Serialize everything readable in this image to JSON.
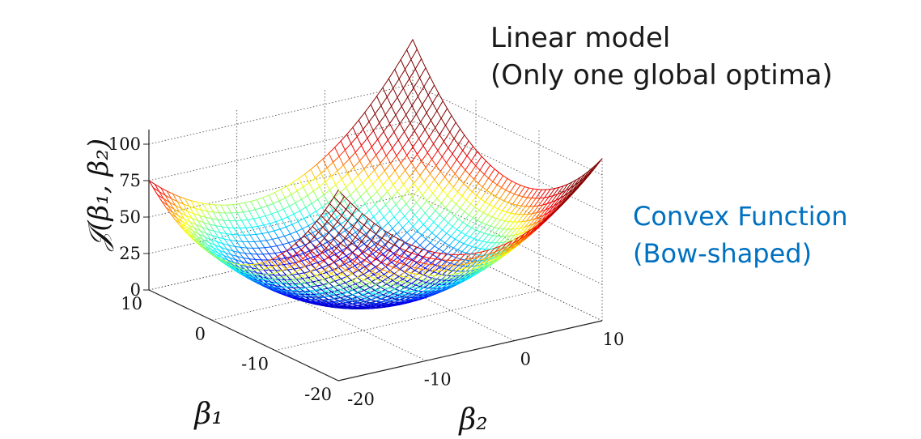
{
  "chart_data": {
    "type": "surface3d",
    "function": "convex quadratic bowl",
    "zlabel": "𝒥(β₁, β₂)",
    "xlabel": "β₁",
    "ylabel": "β₂",
    "xlim": [
      -20,
      10
    ],
    "ylim": [
      -20,
      10
    ],
    "zlim": [
      0,
      110
    ],
    "z_ticks": [
      "0",
      "25",
      "50",
      "75",
      "100"
    ],
    "x_ticks": [
      "10",
      "0",
      "-10",
      "-20"
    ],
    "y_ticks": [
      "-20",
      "-10",
      "0",
      "10"
    ],
    "colormap": [
      "#00008f",
      "#0000ff",
      "#00ffff",
      "#ffff00",
      "#ff0000",
      "#800000"
    ],
    "grid": true
  },
  "annotations": {
    "model_line1": "Linear model",
    "model_line2": "(Only one global optima)",
    "convex_line1": "Convex Function",
    "convex_line2": "(Bow-shaped)"
  }
}
